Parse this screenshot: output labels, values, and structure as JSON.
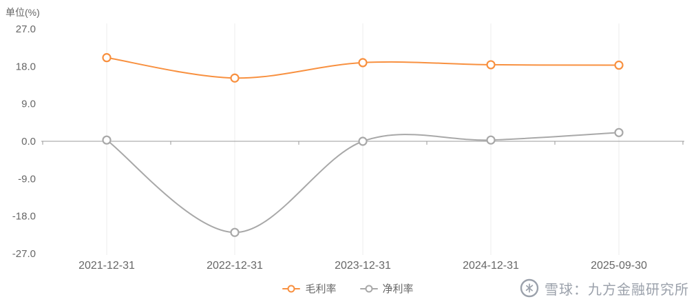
{
  "unit_label": "单位(%)",
  "chart_data": {
    "type": "line",
    "smooth": true,
    "categories": [
      "2021-12-31",
      "2022-12-31",
      "2023-12-31",
      "2024-12-31",
      "2025-09-30"
    ],
    "series": [
      {
        "name": "毛利率",
        "color": "#f8903f",
        "values": [
          20.1,
          15.2,
          18.9,
          18.4,
          18.3
        ]
      },
      {
        "name": "净利率",
        "color": "#a8a8a8",
        "values": [
          0.3,
          -21.9,
          0.0,
          0.3,
          2.1
        ]
      }
    ],
    "ylim": [
      -27,
      27
    ],
    "yticks": [
      27,
      18,
      9,
      0,
      -9,
      -18,
      -27
    ],
    "ytick_labels": [
      "27.0",
      "18.0",
      "9.0",
      "0.0",
      "-9.0",
      "-18.0",
      "-27.0"
    ],
    "legend_position": "bottom",
    "grid": "zero-axis-with-faint-vertical-splitlines",
    "axis_color": "#999999",
    "label_color": "#666666"
  },
  "legend": {
    "items": [
      {
        "label": "毛利率",
        "color": "#f8903f"
      },
      {
        "label": "净利率",
        "color": "#a8a8a8"
      }
    ]
  },
  "watermark": {
    "text": "雪球：九方金融研究所",
    "logo": "xueqiu-snowball-icon",
    "color": "#9ba1ab"
  }
}
